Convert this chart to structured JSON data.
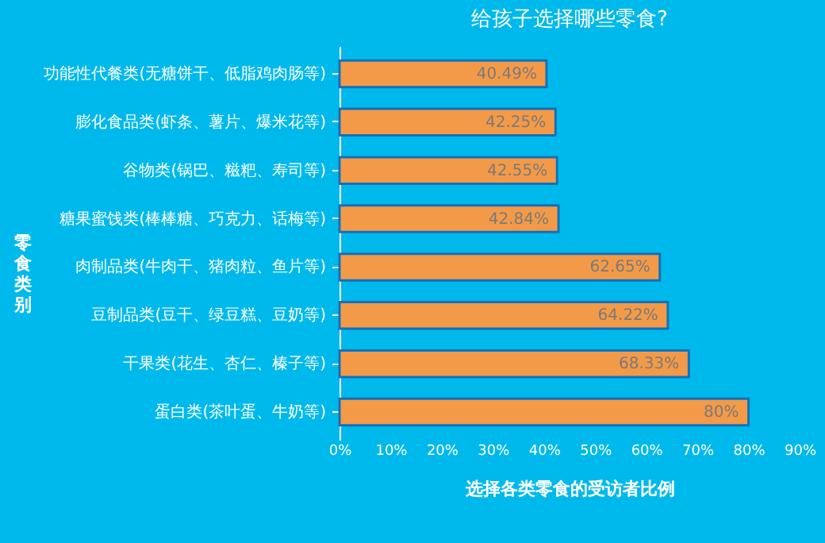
{
  "chart_data": {
    "type": "bar",
    "orientation": "horizontal",
    "title": "给孩子选择哪些零食?",
    "xlabel": "选择各类零食的受访者比例",
    "ylabel": "零食类别",
    "categories": [
      "功能性代餐类(无糖饼干、低脂鸡肉肠等)",
      "膨化食品类(虾条、薯片、爆米花等)",
      "谷物类(锅巴、糍粑、寿司等)",
      "糖果蜜饯类(棒棒糖、巧克力、话梅等)",
      "肉制品类(牛肉干、猪肉粒、鱼片等)",
      "豆制品类(豆干、绿豆糕、豆奶等)",
      "干果类(花生、杏仁、榛子等)",
      "蛋白类(茶叶蛋、牛奶等)"
    ],
    "values": [
      40.49,
      42.25,
      42.55,
      42.84,
      62.65,
      64.22,
      68.33,
      80
    ],
    "value_labels": [
      "40.49%",
      "42.25%",
      "42.55%",
      "42.84%",
      "62.65%",
      "64.22%",
      "68.33%",
      "80%"
    ],
    "color": "#f39a48",
    "xlim": [
      0,
      90
    ],
    "xticks": [
      {
        "value": 0,
        "label": "0%"
      },
      {
        "value": 10,
        "label": "10%"
      },
      {
        "value": 20,
        "label": "20%"
      },
      {
        "value": 30,
        "label": "30%"
      },
      {
        "value": 40,
        "label": "40%"
      },
      {
        "value": 50,
        "label": "50%"
      },
      {
        "value": 60,
        "label": "60%"
      },
      {
        "value": 70,
        "label": "70%"
      },
      {
        "value": 80,
        "label": "80%"
      },
      {
        "value": 90,
        "label": "90%"
      }
    ],
    "grid": false
  }
}
